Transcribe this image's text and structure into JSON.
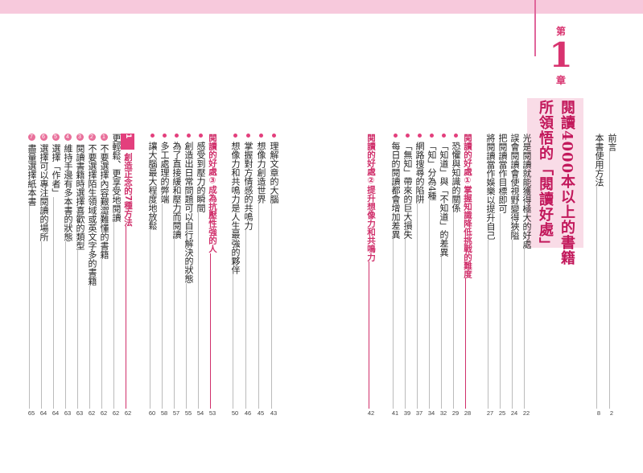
{
  "chapter": {
    "di": "第",
    "number": "1",
    "zhang": "章",
    "title_line1": "閱讀4000本以上的書籍",
    "title_line2": "所領悟的「閱讀好處」"
  },
  "front": [
    {
      "text": "前言",
      "page": "2"
    },
    {
      "text": "本書使用方法",
      "page": "8"
    }
  ],
  "section_intro": [
    {
      "text": "光是閱讀就能獲得極大的好處",
      "page": "22"
    },
    {
      "text": "誤會閱讀會使視野變得狹隘",
      "page": "24"
    },
    {
      "text": "把閱讀當作目標即可",
      "page": "25"
    },
    {
      "text": "將閱讀當作娛樂以提升自己",
      "page": "27"
    }
  ],
  "sec1": {
    "title": "閱讀的好處①掌握知識降低挑戰的難度",
    "page": "28",
    "items": [
      {
        "text": "恐懼與知識的關係",
        "page": "29"
      },
      {
        "text": "「知道」與「不知道」的差異",
        "page": "32"
      },
      {
        "text": "「知」分為4種",
        "page": "34"
      },
      {
        "text": "網路搜尋的陷阱",
        "page": "37"
      },
      {
        "text": "「無知」帶來的巨大損失",
        "page": "39"
      },
      {
        "text": "每日的閱讀都會增加差異",
        "page": "41"
      }
    ]
  },
  "sec2": {
    "title": "閱讀的好處②提升想像力和共鳴力",
    "page": "42",
    "items": [
      {
        "text": "理解文章的大腦",
        "page": "43"
      },
      {
        "text": "想像力創造世界",
        "page": "45"
      },
      {
        "text": "掌握對方情感的共鳴力",
        "page": "46"
      },
      {
        "text": "想像力和共鳴力是人生最強的夥伴",
        "page": "50"
      }
    ]
  },
  "sec3": {
    "title": "閱讀的好處③成為抗壓性強的人",
    "page": "53",
    "items": [
      {
        "text": "感受到壓力的瞬間",
        "page": "54"
      },
      {
        "text": "創造出日常問題可以自行解決的狀態",
        "page": "55"
      },
      {
        "text": "為了直接緩和壓力而閱讀",
        "page": "57"
      },
      {
        "text": "多工處理的弊端",
        "page": "58"
      },
      {
        "text": "讓大腦最大程度地放鬆",
        "page": "60"
      }
    ]
  },
  "tips": {
    "label": "祕技1",
    "title": "創造正念的7種方法",
    "page": "62",
    "intro": {
      "text": "更輕鬆、更享受地閱讀",
      "page": "62"
    },
    "items": [
      {
        "num": "1",
        "text": "不要選擇內容艱澀難懂的書籍",
        "page": "62"
      },
      {
        "num": "2",
        "text": "不要選擇陌生領域或英文字多的書籍",
        "page": "62"
      },
      {
        "num": "3",
        "text": "閱讀書籍時選擇喜歡的類型",
        "page": "63"
      },
      {
        "num": "4",
        "text": "維持手邊有多本書的狀態",
        "page": "63"
      },
      {
        "num": "5",
        "text": "選擇「作者」",
        "page": "64"
      },
      {
        "num": "6",
        "text": "選擇可以專注閱讀的場所",
        "page": "64"
      },
      {
        "num": "7",
        "text": "盡量選擇紙本書",
        "page": "65"
      }
    ]
  },
  "colors": {
    "accent": "#d0306b",
    "band": "#f7c9dc",
    "panel": "#f9dce7"
  }
}
